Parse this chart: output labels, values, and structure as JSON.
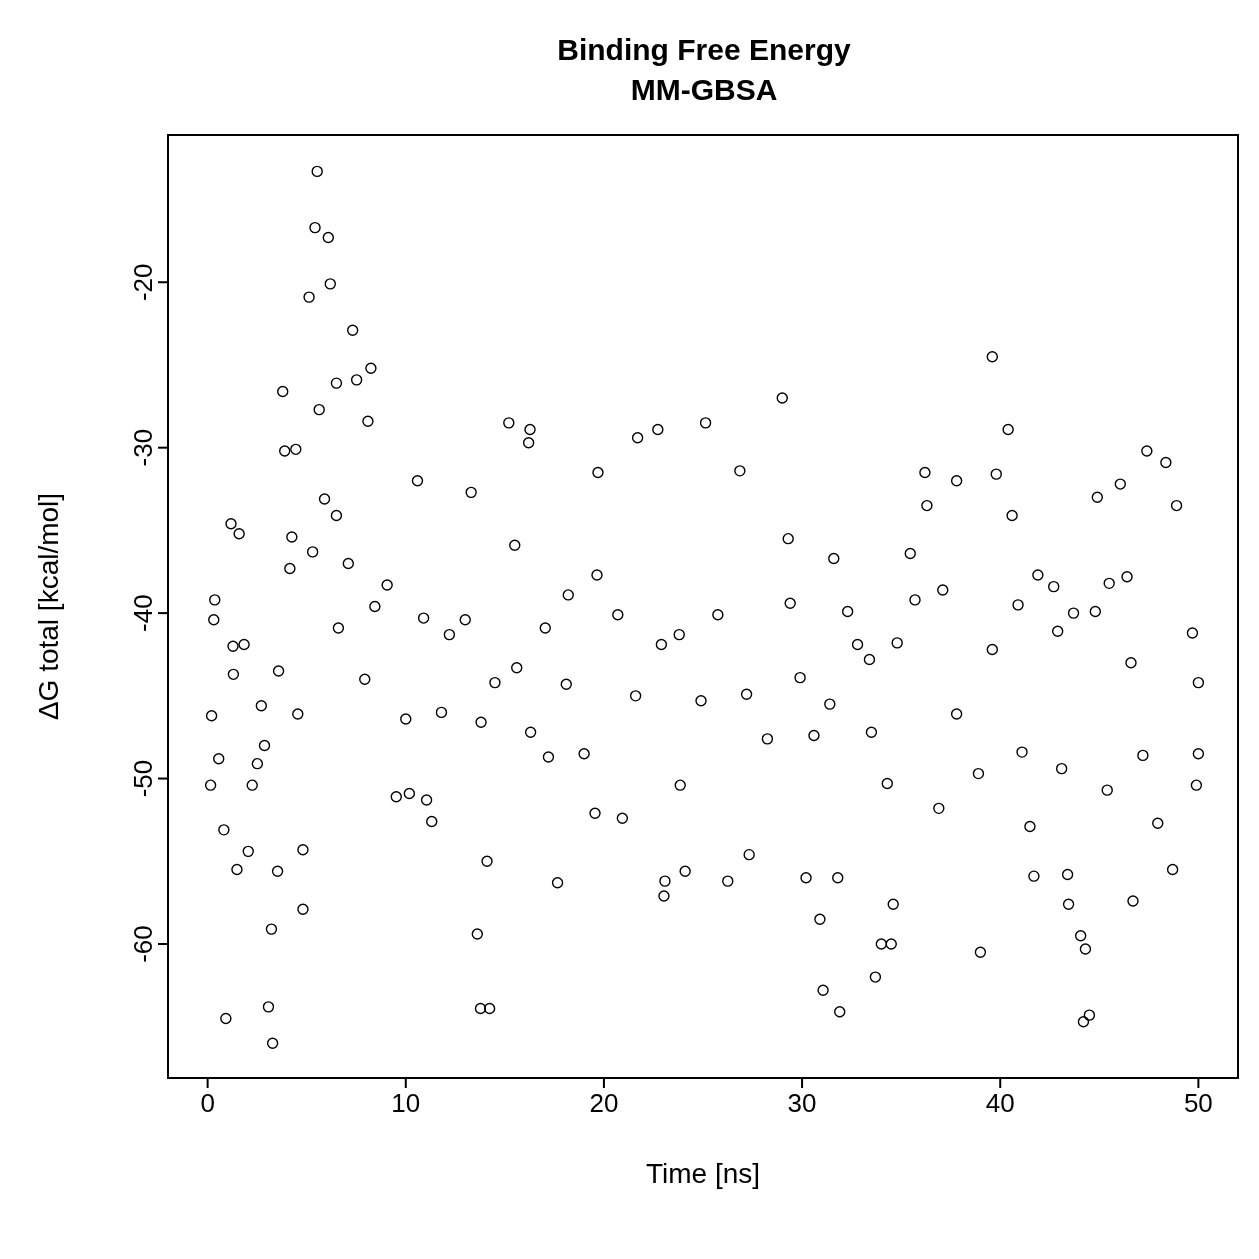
{
  "chart_data": {
    "type": "scatter",
    "title": "Binding Free Energy",
    "subtitle": "MM-GBSA",
    "xlabel": "Time [ns]",
    "ylabel": "ΔG total [kcal/mol]",
    "xlim": [
      -2,
      52
    ],
    "ylim": [
      -68.1,
      -11.1
    ],
    "xticks": [
      0,
      10,
      20,
      30,
      40,
      50
    ],
    "yticks": [
      -60,
      -50,
      -40,
      -30,
      -20
    ],
    "marker": "circle",
    "series": [
      {
        "color": "#000000",
        "x": [
          0.15,
          0.36,
          0.31,
          0.2,
          0.56,
          0.82,
          0.92,
          1.18,
          1.28,
          1.48,
          1.59,
          1.84,
          2.05,
          2.51,
          2.71,
          3.07,
          3.28,
          3.22,
          3.53,
          3.58,
          3.79,
          3.89,
          4.15,
          4.45,
          4.55,
          4.81,
          4.81,
          5.12,
          5.42,
          5.53,
          5.63,
          6.09,
          6.19,
          6.6,
          6.5,
          7.32,
          7.52,
          8.24,
          8.09,
          7.93,
          9.52,
          10.18,
          11.05,
          11.31,
          10.59,
          13.3,
          13.77,
          13.61,
          14.23,
          14.1,
          15.2,
          16.27,
          16.2,
          15.5,
          17.04,
          17.66,
          18.2,
          19.7,
          19.55,
          20.93,
          21.7,
          22.72,
          23.08,
          23.03,
          25.13,
          23.85,
          24.1,
          26.25,
          26.86,
          27.33,
          29.0,
          29.3,
          29.9,
          30.2,
          30.9,
          31.06,
          31.9,
          31.8,
          31.6,
          33.4,
          33.7,
          34.0,
          34.5,
          34.6,
          35.46,
          36.2,
          36.3,
          36.9,
          37.8,
          39.0,
          39.6,
          39.8,
          40.4,
          40.6,
          41.1,
          41.5,
          41.7,
          42.7,
          43.1,
          43.4,
          43.45,
          44.06,
          44.2,
          44.5,
          44.3,
          44.9,
          45.4,
          46.06,
          46.7,
          47.4,
          48.36,
          47.95,
          48.9,
          48.7,
          50.0,
          50.0,
          49.9,
          49.7,
          47.2,
          46.6,
          46.4,
          45.5,
          44.8,
          43.7,
          42.9,
          41.9,
          40.9,
          39.6,
          38.9,
          37.8,
          37.1,
          35.7,
          34.8,
          34.3,
          33.5,
          32.8,
          32.3,
          31.4,
          30.6,
          29.4,
          28.25,
          27.2,
          25.75,
          24.9,
          23.8,
          22.9,
          21.6,
          20.7,
          19.65,
          19.0,
          18.1,
          17.2,
          16.3,
          15.6,
          14.5,
          13.8,
          13.0,
          12.2,
          11.8,
          10.9,
          10.0,
          9.06,
          8.44,
          7.1,
          6.5,
          5.9,
          5.3,
          4.25,
          1.3,
          2.25,
          2.87
        ],
        "values": [
          -50.4,
          -39.2,
          -40.4,
          -46.2,
          -48.8,
          -53.1,
          -64.5,
          -34.6,
          -42.0,
          -55.5,
          -35.2,
          -41.9,
          -54.4,
          -49.1,
          -45.6,
          -63.8,
          -66.0,
          -59.1,
          -55.6,
          -43.5,
          -26.6,
          -30.2,
          -37.3,
          -30.1,
          -46.1,
          -57.9,
          -54.3,
          -20.9,
          -16.7,
          -13.3,
          -27.7,
          -17.3,
          -20.1,
          -40.9,
          -26.1,
          -22.9,
          -25.9,
          -25.2,
          -28.4,
          -44.0,
          -51.1,
          -50.9,
          -51.3,
          -52.6,
          -32.0,
          -32.7,
          -63.9,
          -59.4,
          -63.9,
          -55.0,
          -28.5,
          -28.9,
          -29.7,
          -35.9,
          -40.9,
          -56.3,
          -38.9,
          -31.5,
          -52.1,
          -52.4,
          -29.4,
          -28.9,
          -56.2,
          -57.1,
          -28.5,
          -50.4,
          -55.6,
          -56.2,
          -31.4,
          -54.6,
          -27.0,
          -35.5,
          -43.9,
          -56.0,
          -58.5,
          -62.8,
          -64.1,
          -56.0,
          -36.7,
          -42.8,
          -62.0,
          -60.0,
          -60.0,
          -57.6,
          -36.4,
          -31.5,
          -33.5,
          -51.8,
          -32.0,
          -60.5,
          -24.5,
          -31.6,
          -28.9,
          -34.1,
          -48.4,
          -52.9,
          -55.9,
          -38.4,
          -49.4,
          -55.8,
          -57.6,
          -59.5,
          -64.7,
          -64.3,
          -60.3,
          -33.0,
          -50.7,
          -32.2,
          -57.4,
          -30.2,
          -30.9,
          -52.7,
          -33.5,
          -55.5,
          -44.2,
          -48.5,
          -50.4,
          -41.2,
          -48.6,
          -43.0,
          -37.8,
          -38.2,
          -39.9,
          -40.0,
          -41.1,
          -37.7,
          -39.5,
          -42.2,
          -49.7,
          -46.1,
          -38.6,
          -39.2,
          -41.8,
          -50.3,
          -47.2,
          -41.9,
          -39.9,
          -45.5,
          -47.4,
          -39.4,
          -47.6,
          -44.9,
          -40.1,
          -45.3,
          -41.3,
          -41.9,
          -45.0,
          -40.1,
          -37.7,
          -48.5,
          -44.3,
          -48.7,
          -47.2,
          -43.3,
          -44.2,
          -46.6,
          -40.4,
          -41.3,
          -46.0,
          -40.3,
          -46.4,
          -38.3,
          -39.6,
          -37.0,
          -34.1,
          -33.1,
          -36.3,
          -35.4,
          -43.7,
          -50.4,
          -48.0
        ]
      }
    ]
  }
}
